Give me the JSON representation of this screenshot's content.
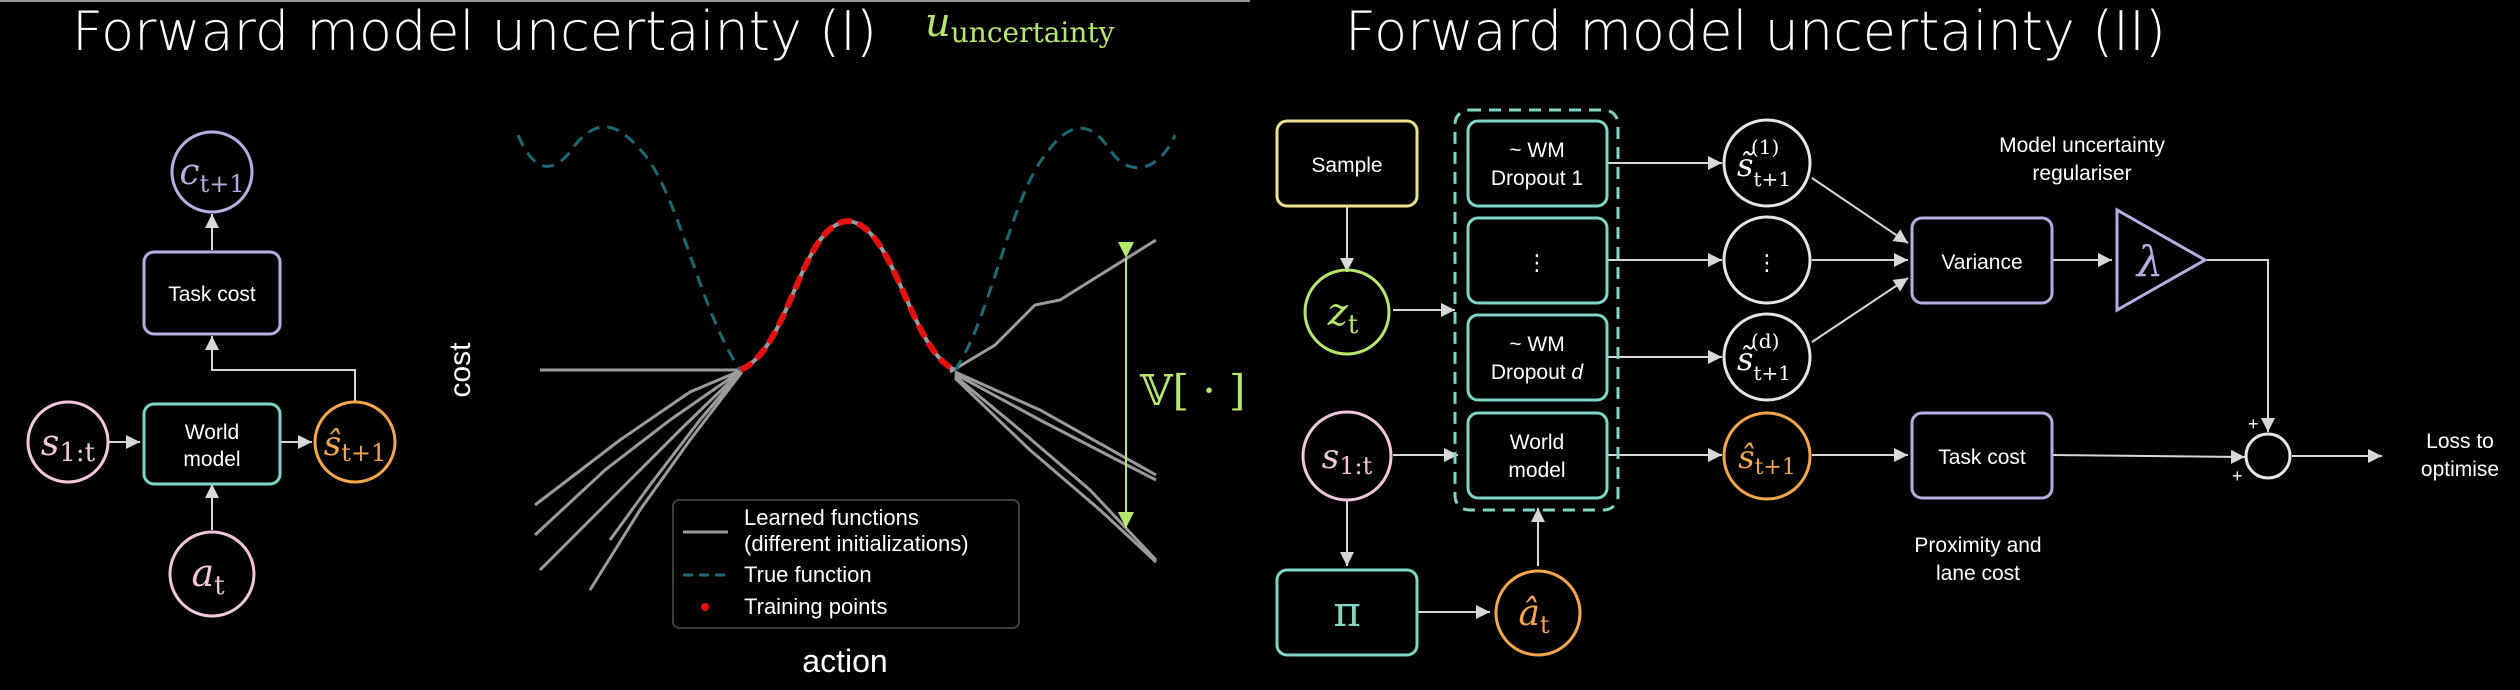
{
  "panel1": {
    "title": "Forward model uncertainty (I)",
    "u_label_main": "u",
    "u_label_sub": "uncertainty",
    "nodes": {
      "c": {
        "main": "c",
        "sub": "t+1"
      },
      "task_cost": "Task cost",
      "s": {
        "main": "s",
        "sub": "1:t"
      },
      "world_model": [
        "World",
        "model"
      ],
      "s_hat": {
        "main": "ŝ",
        "sub": "t+1"
      },
      "a": {
        "main": "a",
        "sub": "t"
      }
    },
    "plot": {
      "ylabel": "cost",
      "xlabel": "action",
      "variance_label": "𝕍[ · ]",
      "legend": {
        "learned_line1": "Learned functions",
        "learned_line2": "(different initializations)",
        "true": "True function",
        "training": "Training points"
      }
    }
  },
  "panel2": {
    "title": "Forward model uncertainty (II)",
    "nodes": {
      "sample": "Sample",
      "z": {
        "main": "z",
        "sub": "t"
      },
      "s": {
        "main": "s",
        "sub": "1:t"
      },
      "pi": "π",
      "a_hat": {
        "main": "â",
        "sub": "t"
      },
      "wm_dropout1": [
        "~ WM",
        "Dropout 1"
      ],
      "wm_dots": "⋮",
      "wm_dropout_d_line1": "~ WM",
      "wm_dropout_d_line2": "Dropout ",
      "wm_dropout_d_var": "d",
      "world_model": [
        "World",
        "model"
      ],
      "s1": {
        "main": "s̃",
        "sub": "t+1",
        "sup": "(1)"
      },
      "s_dots": "⋮",
      "sd": {
        "main": "s̃",
        "sub": "t+1",
        "sup": "(d)"
      },
      "s_hat": {
        "main": "ŝ",
        "sub": "t+1"
      },
      "variance": "Variance",
      "lambda": "λ",
      "task_cost": "Task cost",
      "plus1": "+",
      "plus2": "+",
      "loss": [
        "Loss to",
        "optimise"
      ]
    },
    "annotations": {
      "regulariser": [
        "Model uncertainty",
        "regulariser"
      ],
      "proximity": [
        "Proximity and",
        "lane cost"
      ]
    }
  },
  "colors": {
    "teal": "#7fd6c8",
    "purple": "#b6aee0",
    "pink": "#f2c6dd",
    "orange": "#f6a64b",
    "yellow": "#eee28f",
    "green": "#b6e86c",
    "gold": "#f5dd5a",
    "salmon": "#f27d70",
    "red": "#e41111",
    "dashed_true": "#1a6a78"
  }
}
